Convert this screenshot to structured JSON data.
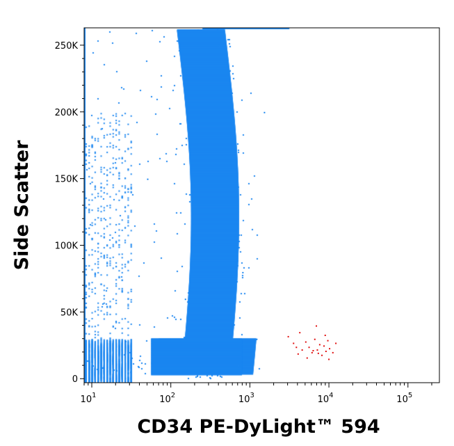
{
  "chart_data": {
    "type": "scatter",
    "title": "",
    "xlabel": "CD34 PE-DyLight™ 594",
    "ylabel": "Side Scatter",
    "x_scale": "log",
    "xlim": [
      8,
      250000
    ],
    "ylim": [
      -3000,
      263000
    ],
    "x_ticks": [
      {
        "value": 10,
        "base": "10",
        "exp": "1"
      },
      {
        "value": 100,
        "base": "10",
        "exp": "2"
      },
      {
        "value": 1000,
        "base": "10",
        "exp": "3"
      },
      {
        "value": 10000,
        "base": "10",
        "exp": "4"
      },
      {
        "value": 100000,
        "base": "10",
        "exp": "5"
      }
    ],
    "y_ticks": [
      {
        "value": 0,
        "label": "0"
      },
      {
        "value": 50000,
        "label": "50K"
      },
      {
        "value": 100000,
        "label": "100K"
      },
      {
        "value": 150000,
        "label": "150K"
      },
      {
        "value": 200000,
        "label": "200K"
      },
      {
        "value": 250000,
        "label": "250K"
      }
    ],
    "grid": false,
    "legend": "none",
    "series": [
      {
        "color": "#1a86f0",
        "points": [
          [
            30,
            20000
          ],
          [
            100,
            30000
          ],
          [
            200,
            100000
          ],
          [
            300,
            200000
          ],
          [
            500,
            150000
          ],
          [
            400,
            250000
          ],
          [
            50,
            150000
          ],
          [
            800,
            80000
          ],
          [
            1500,
            200000
          ],
          [
            150,
            60000
          ],
          [
            700,
            10000
          ],
          [
            1200,
            30000
          ]
        ]
      },
      {
        "color": "#e01010",
        "points": [
          [
            3000,
            32000
          ],
          [
            3500,
            27000
          ],
          [
            4000,
            19000
          ],
          [
            4500,
            22000
          ],
          [
            5000,
            28000
          ],
          [
            5500,
            24000
          ],
          [
            6000,
            20000
          ],
          [
            6500,
            30000
          ],
          [
            7000,
            22000
          ],
          [
            7500,
            26000
          ],
          [
            8000,
            18000
          ],
          [
            8500,
            25000
          ],
          [
            9000,
            21000
          ],
          [
            9500,
            29000
          ],
          [
            10000,
            23000
          ],
          [
            11000,
            20000
          ],
          [
            12000,
            27000
          ],
          [
            4200,
            35000
          ],
          [
            6800,
            40000
          ],
          [
            9800,
            15000
          ],
          [
            5200,
            16000
          ],
          [
            7200,
            19500
          ],
          [
            8800,
            33000
          ],
          [
            3800,
            24000
          ],
          [
            6200,
            21500
          ]
        ]
      }
    ]
  }
}
